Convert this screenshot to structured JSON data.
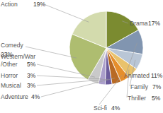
{
  "chart_data": {
    "type": "pie",
    "categories": [
      "Drama",
      "Animated",
      "Family",
      "Thriller",
      "Sci-fi",
      "Adventure",
      "Musical",
      "Horror",
      "Western/War/Other",
      "Comedy",
      "Action"
    ],
    "values": [
      17,
      11,
      7,
      5,
      4,
      4,
      3,
      3,
      5,
      23,
      19
    ],
    "value_labels": [
      "17%",
      "11%",
      "7%",
      "5%",
      "4%",
      "4%",
      "3%",
      "3%",
      "5%",
      "23%",
      "19%"
    ],
    "colors": [
      "#7b8b30",
      "#8195b0",
      "#b9c6d6",
      "#e9c26c",
      "#e58e2c",
      "#b86a24",
      "#6c5c9c",
      "#ab9fcb",
      "#c9c9c9",
      "#aebd70",
      "#d3dbad"
    ],
    "data_labels": true
  }
}
